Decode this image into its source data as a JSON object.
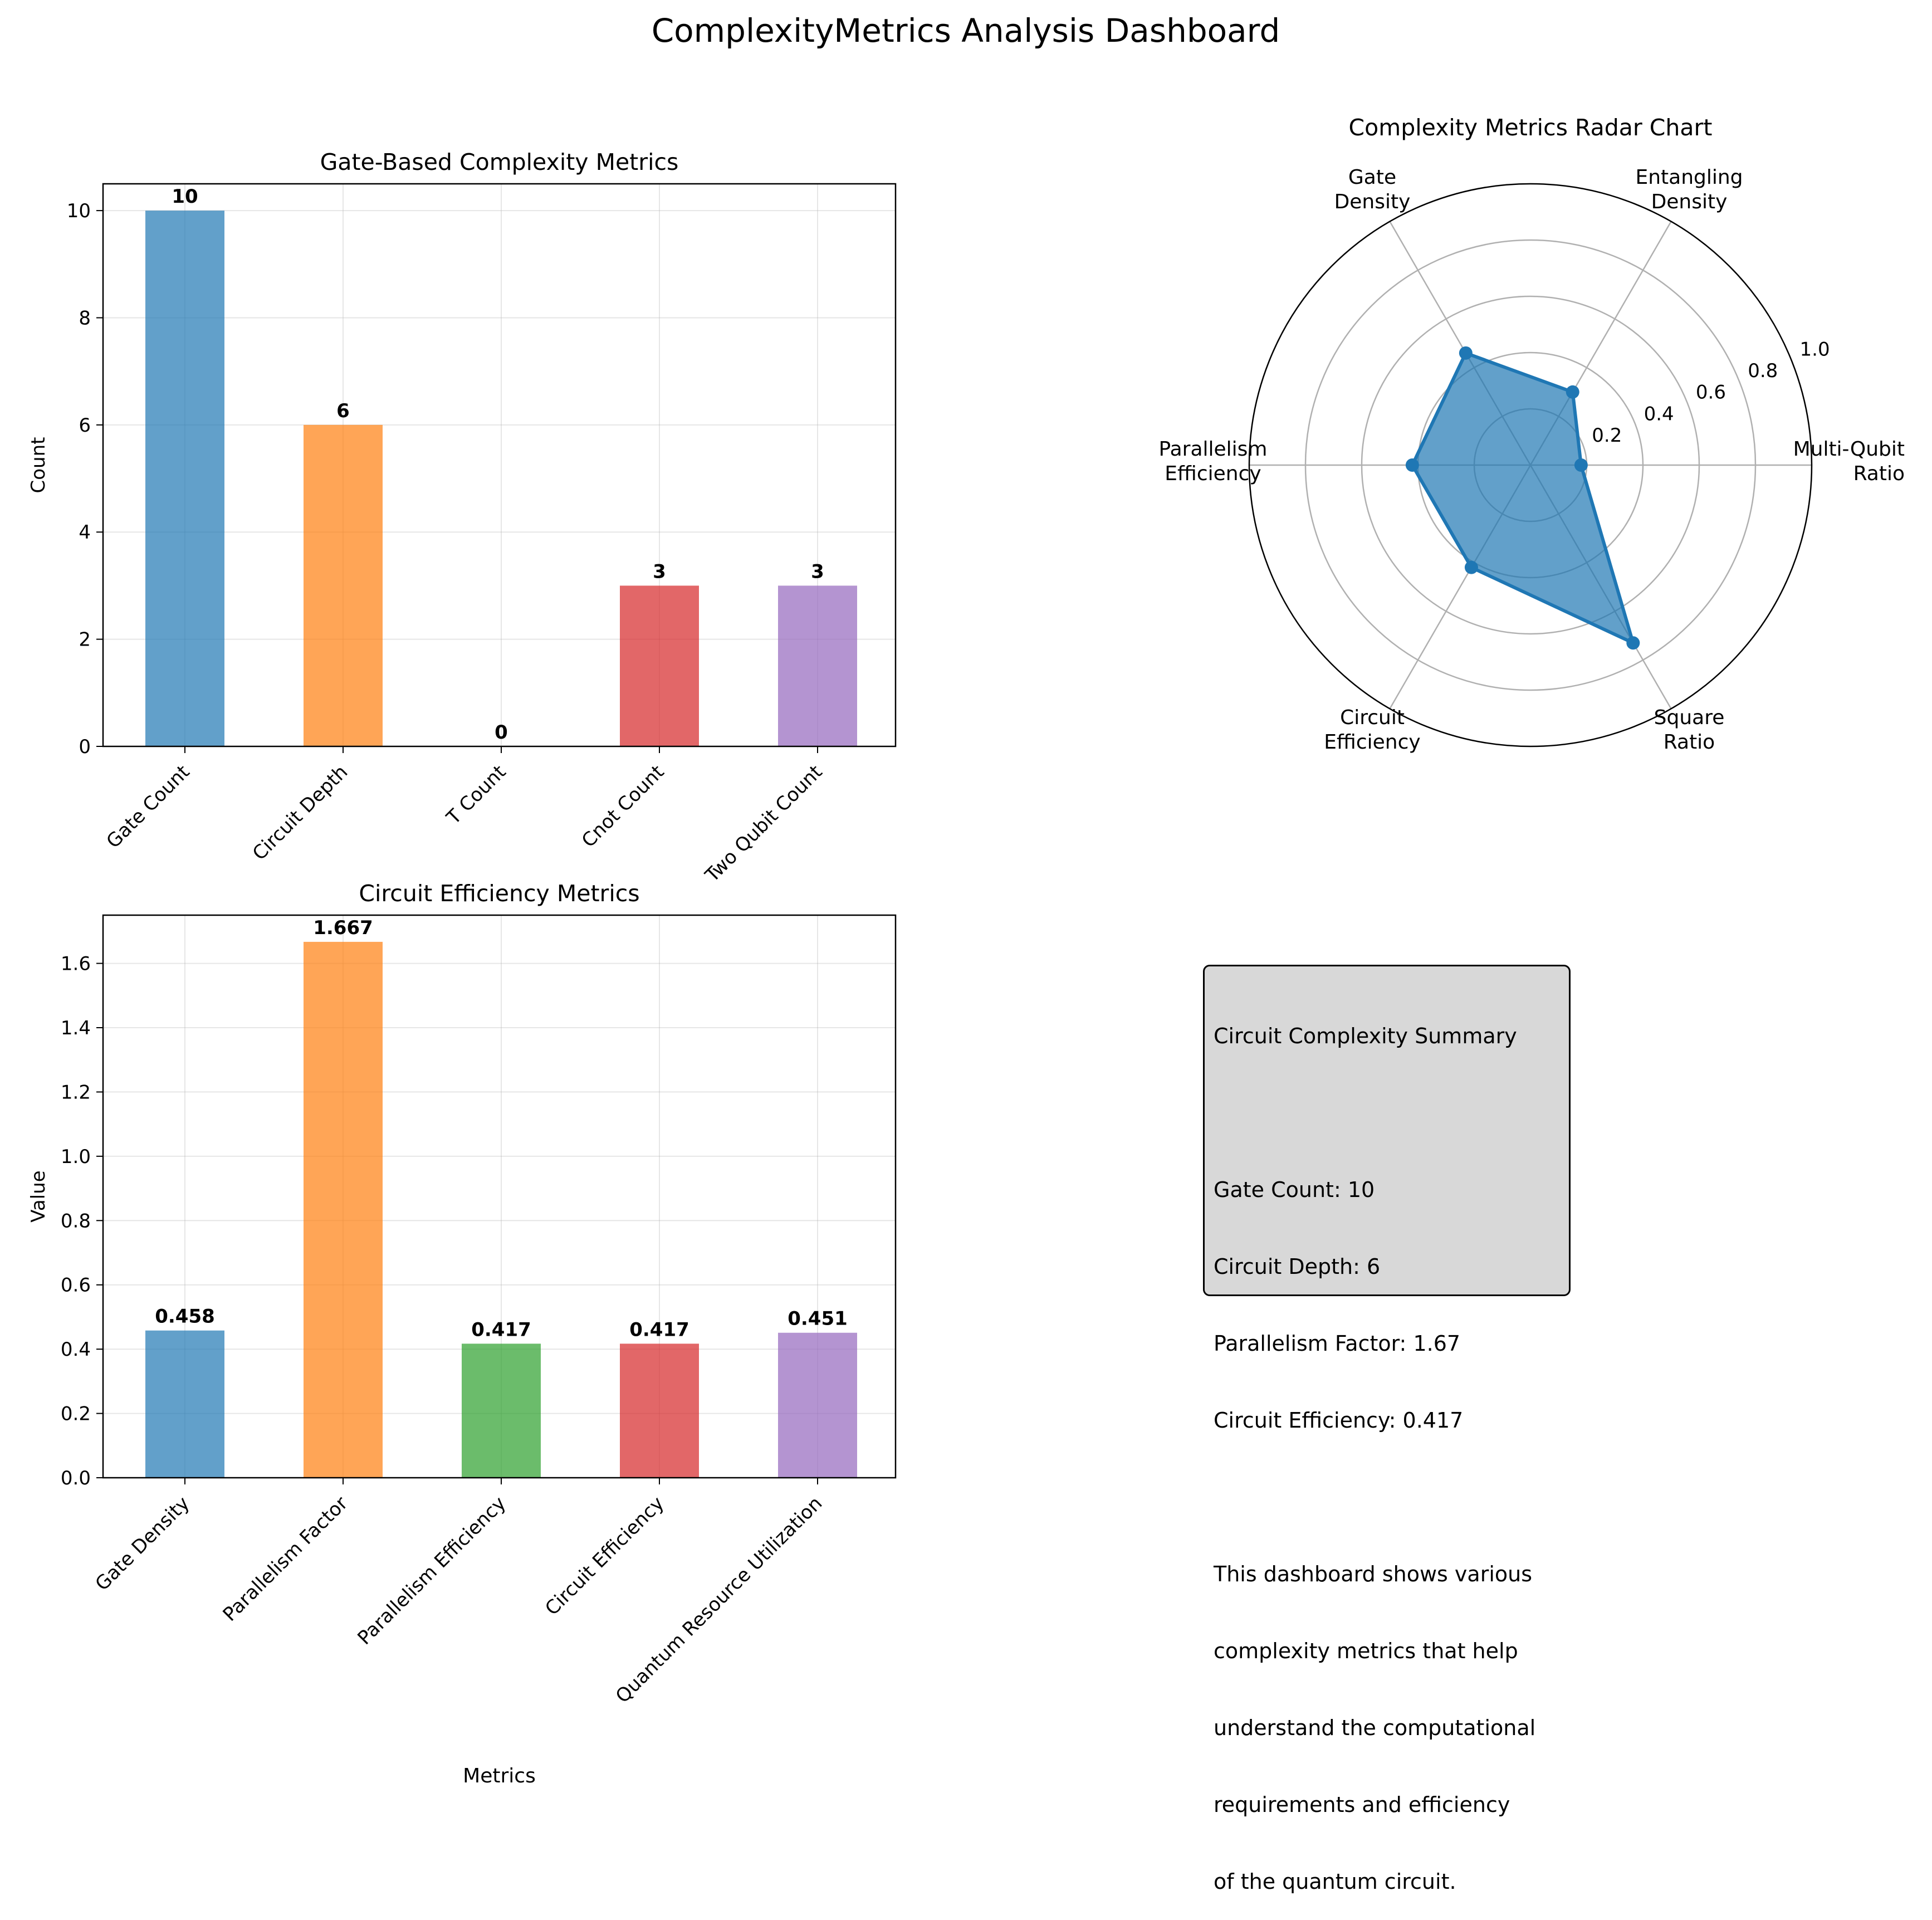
{
  "dashboard": {
    "title": "ComplexityMetrics Analysis Dashboard"
  },
  "chart_data": [
    {
      "type": "bar",
      "title": "Gate-Based Complexity Metrics",
      "xlabel": "",
      "ylabel": "Count",
      "ylim": [
        0,
        10.5
      ],
      "yticks": [
        0,
        2,
        4,
        6,
        8,
        10
      ],
      "categories": [
        "Gate Count",
        "Circuit Depth",
        "T Count",
        "Cnot Count",
        "Two Qubit Count"
      ],
      "values": [
        10,
        6,
        0,
        3,
        3
      ],
      "value_labels": [
        "10",
        "6",
        "0",
        "3",
        "3"
      ],
      "colors": [
        "#1f77b4",
        "#ff7f0e",
        "#2ca02c",
        "#d62728",
        "#9467bd"
      ],
      "grid": true
    },
    {
      "type": "radar",
      "title": "Complexity Metrics Radar Chart",
      "axes": [
        "Multi-Qubit\nRatio",
        "Entangling\nDensity",
        "Gate\nDensity",
        "Parallelism\nEfficiency",
        "Circuit\nEfficiency",
        "Square\nRatio"
      ],
      "values": [
        0.18,
        0.3,
        0.46,
        0.42,
        0.42,
        0.73
      ],
      "rlim": [
        0,
        1.0
      ],
      "rticks": [
        "0.2",
        "0.4",
        "0.6",
        "0.8",
        "1.0"
      ],
      "color": "#1f77b4"
    },
    {
      "type": "bar",
      "title": "Circuit Efficiency Metrics",
      "xlabel": "Metrics",
      "ylabel": "Value",
      "ylim": [
        0,
        1.75
      ],
      "yticks": [
        0.0,
        0.2,
        0.4,
        0.6,
        0.8,
        1.0,
        1.2,
        1.4,
        1.6
      ],
      "categories": [
        "Gate Density",
        "Parallelism Factor",
        "Parallelism Efficiency",
        "Circuit Efficiency",
        "Quantum Resource Utilization"
      ],
      "values": [
        0.458,
        1.667,
        0.417,
        0.417,
        0.451
      ],
      "value_labels": [
        "0.458",
        "1.667",
        "0.417",
        "0.417",
        "0.451"
      ],
      "colors": [
        "#1f77b4",
        "#ff7f0e",
        "#2ca02c",
        "#d62728",
        "#9467bd"
      ],
      "grid": true
    }
  ],
  "summary": {
    "lines": [
      "Circuit Complexity Summary",
      "",
      "Gate Count: 10",
      "Circuit Depth: 6",
      "Parallelism Factor: 1.67",
      "Circuit Efficiency: 0.417",
      "",
      "This dashboard shows various",
      "complexity metrics that help",
      "understand the computational",
      "requirements and efficiency",
      "of the quantum circuit."
    ]
  }
}
